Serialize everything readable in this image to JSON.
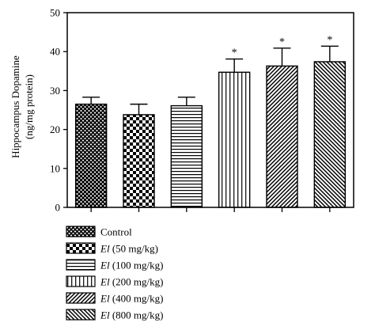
{
  "chart_data": {
    "type": "bar",
    "title": "",
    "xlabel": "",
    "ylabel": [
      "Hippocampus Dopamine",
      "(ng/mg protein)"
    ],
    "ylim": [
      0,
      50
    ],
    "yticks": [
      0,
      10,
      20,
      30,
      40,
      50
    ],
    "grid": false,
    "legend_position": "bottom-left",
    "categories": [
      {
        "prefix": "",
        "italic": "",
        "text": "Control"
      },
      {
        "prefix": "",
        "italic": "El",
        "text": " (50 mg/kg)"
      },
      {
        "prefix": "",
        "italic": "El",
        "text": " (100 mg/kg)"
      },
      {
        "prefix": "",
        "italic": "El",
        "text": " (200 mg/kg)"
      },
      {
        "prefix": "",
        "italic": "El",
        "text": " (400 mg/kg)"
      },
      {
        "prefix": "",
        "italic": "El",
        "text": " (800 mg/kg)"
      }
    ],
    "values": [
      26.5,
      23.8,
      26.1,
      34.7,
      36.3,
      37.4
    ],
    "errors": [
      1.8,
      2.7,
      2.2,
      3.4,
      4.6,
      4.0
    ],
    "significance": [
      "",
      "",
      "",
      "*",
      "*",
      "*"
    ],
    "patterns": [
      "crosshatch",
      "checker",
      "horizontal",
      "vertical",
      "diagonal-up",
      "diagonal-down"
    ]
  }
}
